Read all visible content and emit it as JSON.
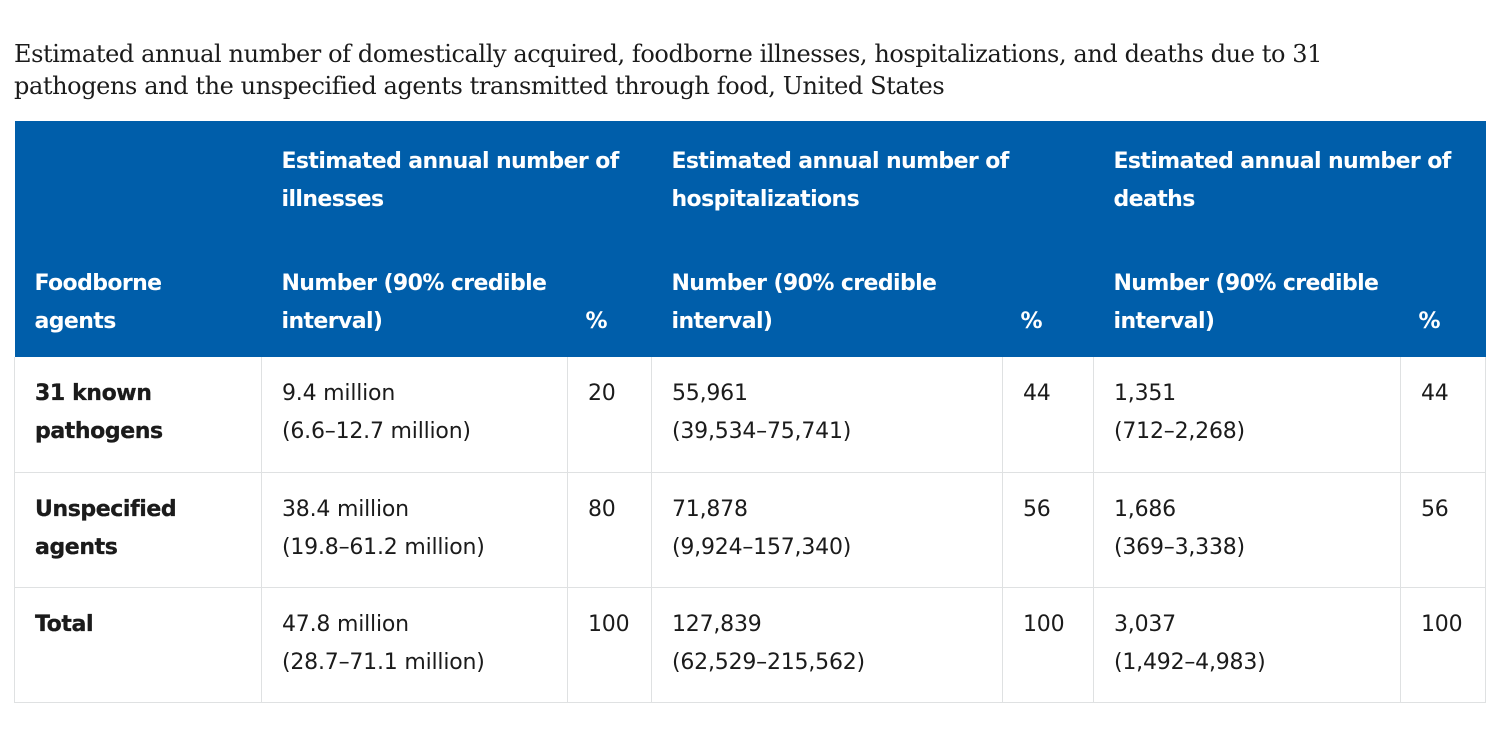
{
  "caption": {
    "line1": "Estimated annual number of domestically acquired, foodborne illnesses, hospitalizations, and deaths due to 31",
    "line2": "pathogens and the unspecified agents transmitted through food, United States"
  },
  "header": {
    "groups": {
      "illnesses": {
        "line1": "Estimated annual number of",
        "line2": "illnesses"
      },
      "hospitalizations": {
        "line1": "Estimated annual number of",
        "line2": "hospitalizations"
      },
      "deaths": {
        "line1": "Estimated annual number of",
        "line2": "deaths"
      }
    },
    "agents": {
      "line1": "Foodborne",
      "line2": "agents"
    },
    "number": {
      "line1": "Number (90% credible",
      "line2": "interval)"
    },
    "pct": "%"
  },
  "rows": [
    {
      "agent": {
        "line1": "31 known",
        "line2": "pathogens"
      },
      "illnesses": {
        "number": "9.4 million",
        "interval": "(6.6–12.7 million)",
        "pct": "20"
      },
      "hospitalizations": {
        "number": "55,961",
        "interval": "(39,534–75,741)",
        "pct": "44"
      },
      "deaths": {
        "number": "1,351",
        "interval": "(712–2,268)",
        "pct": "44"
      }
    },
    {
      "agent": {
        "line1": "Unspecified",
        "line2": "agents"
      },
      "illnesses": {
        "number": "38.4 million",
        "interval": "(19.8–61.2 million)",
        "pct": "80"
      },
      "hospitalizations": {
        "number": "71,878",
        "interval": "(9,924–157,340)",
        "pct": "56"
      },
      "deaths": {
        "number": "1,686",
        "interval": "(369–3,338)",
        "pct": "56"
      }
    },
    {
      "agent": {
        "line1": "Total",
        "line2": ""
      },
      "illnesses": {
        "number": "47.8 million",
        "interval": "(28.7–71.1 million)",
        "pct": "100"
      },
      "hospitalizations": {
        "number": "127,839",
        "interval": "(62,529–215,562)",
        "pct": "100"
      },
      "deaths": {
        "number": "3,037",
        "interval": "(1,492–4,983)",
        "pct": "100"
      }
    }
  ],
  "colors": {
    "header_bg": "#005eaa",
    "header_text": "#ffffff",
    "body_text": "#1b1b1b",
    "border": "#dfe1e2"
  }
}
